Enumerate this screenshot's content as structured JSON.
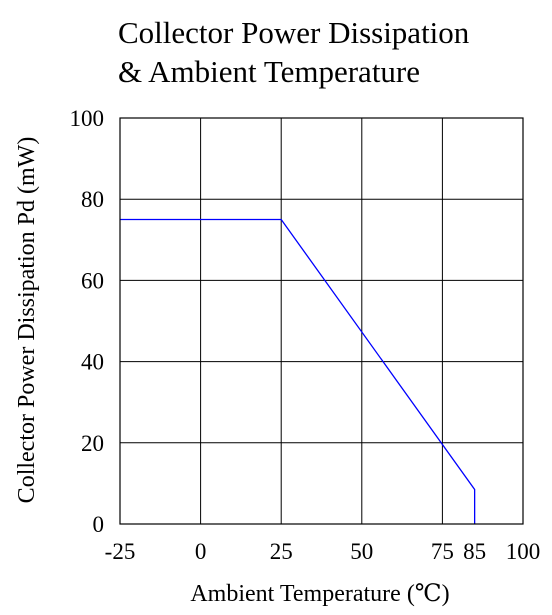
{
  "chart_data": {
    "type": "line",
    "title_lines": [
      "Collector Power Dissipation",
      "& Ambient Temperature"
    ],
    "xlabel": "Ambient Temperature (℃)",
    "ylabel": "Collector Power Dissipation Pd (mW)",
    "xlim": [
      -25,
      100
    ],
    "ylim": [
      0,
      100
    ],
    "x_ticks": [
      -25,
      0,
      25,
      50,
      75,
      85,
      100
    ],
    "x_tick_labels": [
      "-25",
      "0",
      "25",
      "50",
      "75",
      "85",
      "100"
    ],
    "y_ticks": [
      0,
      20,
      40,
      60,
      80,
      100
    ],
    "y_tick_labels": [
      "0",
      "20",
      "40",
      "60",
      "80",
      "100"
    ],
    "x_gridlines": [
      -25,
      0,
      25,
      50,
      75,
      100
    ],
    "y_gridlines": [
      0,
      20,
      40,
      60,
      80,
      100
    ],
    "grid": true,
    "series": [
      {
        "x": [
          -25,
          25,
          85,
          85
        ],
        "y": [
          75,
          75,
          8.5,
          0
        ],
        "color": "#0000ff"
      }
    ],
    "frame_color": "#000000"
  }
}
